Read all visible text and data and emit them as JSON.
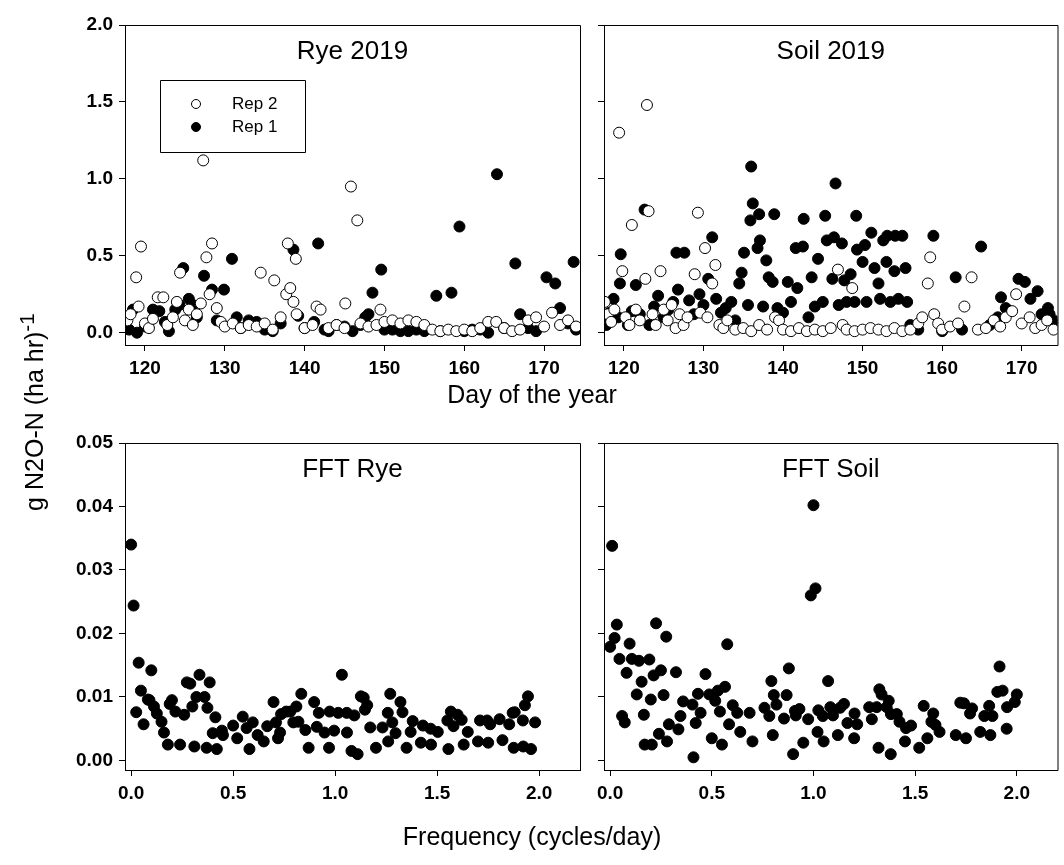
{
  "chart_data": [
    {
      "type": "scatter",
      "title": "Rye 2019",
      "xlabel": "Day of the year",
      "ylabel": "g N2O-N (ha hr)$^{-1}$",
      "marker": "circle",
      "legend": "top left",
      "xlim": [
        117.5,
        174.5
      ],
      "xticks": [
        120,
        130,
        140,
        150,
        160,
        170
      ],
      "ylim": [
        -0.08,
        2.0
      ],
      "yticks": [
        {
          "value": 0,
          "label": "0.0"
        },
        {
          "value": 0.5,
          "label": "0.5"
        },
        {
          "value": 1,
          "label": "1.0"
        },
        {
          "value": 1.5,
          "label": "1.5"
        },
        {
          "value": 2,
          "label": "2.0"
        }
      ],
      "series": [
        {
          "name": "Rep 2",
          "color": "#ffffff",
          "x": [
            117.8,
            118.2,
            118.9,
            119.2,
            119.5,
            120,
            120.5,
            121,
            121.6,
            122.3,
            122.8,
            123.5,
            124,
            124.4,
            125,
            125.5,
            126,
            126.5,
            127,
            127.3,
            127.7,
            128.1,
            128.4,
            129,
            129.5,
            130,
            131,
            132,
            133,
            134,
            134.5,
            135,
            136,
            136.2,
            137,
            137.7,
            137.9,
            138.2,
            138.6,
            138.9,
            139,
            140,
            141,
            141.5,
            142,
            143,
            144,
            145,
            145.1,
            145.8,
            146.6,
            147,
            148,
            149,
            149.5,
            150,
            151,
            152,
            153,
            154,
            155,
            156,
            157,
            158,
            159,
            160,
            161,
            162,
            163,
            164,
            165,
            166,
            167,
            168,
            169,
            170,
            171,
            172,
            173,
            174
          ],
          "values": [
            0.08,
            0.12,
            0.36,
            0.17,
            0.56,
            0.06,
            0.03,
            0.09,
            0.23,
            0.23,
            0.05,
            0.1,
            0.2,
            0.39,
            0.08,
            0.15,
            0.05,
            0.12,
            0.19,
            1.12,
            0.49,
            0.25,
            0.58,
            0.16,
            0.07,
            0.04,
            0.06,
            0.03,
            0.05,
            0.04,
            0.39,
            0.06,
            0.02,
            0.34,
            0.1,
            0.25,
            0.58,
            0.29,
            0.2,
            0.48,
            0.12,
            0.03,
            0.05,
            0.17,
            0.15,
            0.03,
            0.05,
            0.03,
            0.19,
            0.95,
            0.73,
            0.06,
            0.04,
            0.05,
            0.15,
            0.07,
            0.08,
            0.06,
            0.08,
            0.07,
            0.05,
            0.02,
            0.01,
            0.02,
            0.01,
            0.02,
            0.01,
            0.03,
            0.07,
            0.07,
            0.03,
            0.01,
            0.02,
            0.08,
            0.1,
            0.04,
            0.13,
            0.05,
            0.08,
            0.04
          ]
        },
        {
          "name": "Rep 1",
          "color": "#000000",
          "x": [
            118,
            118.5,
            119,
            120,
            121,
            121.8,
            122.5,
            123,
            123.8,
            124.3,
            124.8,
            125.5,
            126,
            126.5,
            127.4,
            128.4,
            129,
            129.9,
            130.9,
            131.5,
            132,
            133,
            134,
            135,
            136,
            137,
            138.6,
            139.2,
            140,
            141.2,
            141.7,
            142.5,
            143,
            144,
            145,
            146,
            147,
            147.6,
            148,
            148.5,
            149.6,
            150,
            151,
            152,
            153,
            154,
            155,
            156.5,
            157,
            158.4,
            159.4,
            160,
            161,
            162,
            163,
            164.1,
            165,
            166.4,
            167,
            168,
            169,
            170.3,
            171.4,
            172,
            173,
            173.7,
            174
          ],
          "values": [
            0.02,
            0.15,
            0,
            0.04,
            0.15,
            0.14,
            0.07,
            0.01,
            0.15,
            0.18,
            0.42,
            0.22,
            0.18,
            0.1,
            0.37,
            0.28,
            0.08,
            0.28,
            0.48,
            0.1,
            0.03,
            0.08,
            0.07,
            0.02,
            0.01,
            0.06,
            0.54,
            0.11,
            0.03,
            0.07,
            0.58,
            0.02,
            0.01,
            0.05,
            0.04,
            0.01,
            0.05,
            0.1,
            0.12,
            0.26,
            0.41,
            0.02,
            0.02,
            0.01,
            0.01,
            0.02,
            0.01,
            0.24,
            0.01,
            0.26,
            0.69,
            0.01,
            0.02,
            0.02,
            0,
            1.03,
            0.03,
            0.45,
            0.12,
            0.03,
            0.01,
            0.36,
            0.32,
            0.16,
            0.06,
            0.46,
            0.02
          ]
        }
      ]
    },
    {
      "type": "scatter",
      "title": "Soil 2019",
      "marker": "circle",
      "tick_labels": "x",
      "xlim": [
        117.5,
        174.5
      ],
      "xticks": [
        120,
        130,
        140,
        150,
        160,
        170
      ],
      "ylim": [
        -0.08,
        2.0
      ],
      "yticks": [
        {
          "value": 0,
          "label": null
        },
        {
          "value": 0.5,
          "label": null
        },
        {
          "value": 1,
          "label": null
        },
        {
          "value": 1.5,
          "label": null
        },
        {
          "value": 2,
          "label": null
        }
      ],
      "series": [
        {
          "color": "#ffffff",
          "x": [
            117.6,
            118,
            118.4,
            118.8,
            119.4,
            119.8,
            120.2,
            120.7,
            121,
            121.5,
            122,
            122.7,
            122.9,
            123.1,
            123.6,
            124,
            124.6,
            125,
            125.5,
            126,
            126.5,
            127,
            127.5,
            128,
            128.9,
            129.3,
            129.6,
            130.2,
            130.5,
            131.1,
            131.5,
            132,
            132.5,
            133,
            134,
            135,
            136,
            137,
            138,
            139,
            139.5,
            140,
            141,
            142,
            143,
            144,
            145,
            146,
            146.9,
            147.5,
            148,
            148.7,
            149,
            150,
            151,
            152,
            153,
            154,
            155,
            156,
            157,
            157.5,
            158.2,
            158.5,
            159,
            159.5,
            160,
            161,
            162,
            162.8,
            163.7,
            164.5,
            165.5,
            166.5,
            167.3,
            168,
            168.8,
            169.3,
            170,
            171,
            171.7,
            172.5,
            173.2,
            174
          ],
          "values": [
            0.2,
            0.12,
            0.07,
            0.15,
            1.3,
            0.4,
            0.1,
            0.05,
            0.7,
            0.15,
            0.08,
            0.35,
            1.48,
            0.79,
            0.12,
            0.05,
            0.4,
            0.15,
            0.08,
            0.18,
            0.03,
            0.12,
            0.05,
            0.1,
            0.38,
            0.78,
            0.13,
            0.55,
            0.1,
            0.32,
            0.44,
            0.05,
            0.03,
            0.08,
            0.02,
            0.03,
            0.01,
            0.05,
            0.02,
            0.1,
            0.08,
            0.02,
            0.01,
            0.03,
            0.01,
            0.02,
            0.01,
            0.03,
            0.41,
            0.05,
            0.02,
            0.29,
            0.01,
            0.02,
            0.03,
            0.02,
            0.01,
            0.03,
            0.01,
            0.02,
            0.06,
            0.1,
            0.32,
            0.49,
            0.12,
            0.06,
            0.02,
            0.04,
            0.06,
            0.17,
            0.36,
            0.02,
            0.03,
            0.08,
            0.04,
            0.1,
            0.14,
            0.25,
            0.06,
            0.1,
            0.03,
            0.05,
            0.08,
            0.02
          ]
        },
        {
          "color": "#000000",
          "x": [
            117.8,
            118.2,
            118.7,
            119.3,
            119.5,
            119.6,
            120.5,
            121,
            121.5,
            122,
            122.6,
            123.2,
            123.8,
            124.3,
            125,
            125.6,
            126.2,
            126.6,
            126.8,
            127.6,
            128.2,
            128.8,
            129.5,
            130,
            130.6,
            131.1,
            131.6,
            132.2,
            132.8,
            133.5,
            134,
            134.5,
            134.8,
            135.1,
            135.6,
            135.9,
            136,
            136.2,
            136.8,
            137,
            137.1,
            137.5,
            137.9,
            138.2,
            138.7,
            138.9,
            139.3,
            140,
            140.6,
            141,
            141.6,
            141.8,
            142.5,
            142.6,
            143.2,
            143.6,
            144,
            144.4,
            145,
            145.3,
            145.5,
            146.2,
            146.4,
            146.6,
            147,
            147.4,
            147.7,
            148,
            148.5,
            149,
            149.2,
            149.3,
            150,
            150.3,
            150.5,
            151.1,
            151.5,
            152,
            152.2,
            152.6,
            153,
            153.1,
            153.5,
            154,
            154.1,
            154.5,
            155,
            155.4,
            155.6,
            156,
            157,
            158.9,
            160,
            161.7,
            162.5,
            164.9,
            166,
            167,
            167.4,
            168,
            169.6,
            170.4,
            171.1,
            172,
            172.5,
            173.3,
            173.5,
            174,
            174.4
          ],
          "values": [
            0.05,
            0.13,
            0.22,
            0.1,
            0.32,
            0.51,
            0.05,
            0.14,
            0.31,
            0.12,
            0.8,
            0.05,
            0.17,
            0.24,
            0.1,
            0.15,
            0.2,
            0.52,
            0.28,
            0.52,
            0.21,
            0.12,
            0.25,
            0.18,
            0.35,
            0.62,
            0.22,
            0.13,
            0.16,
            0.2,
            0.08,
            0.32,
            0.39,
            0.52,
            0.18,
            0.73,
            1.08,
            0.84,
            0.55,
            0.77,
            0.6,
            0.17,
            0.47,
            0.36,
            0.33,
            0.77,
            0.16,
            0.13,
            0.33,
            0.2,
            0.55,
            0.29,
            0.56,
            0.74,
            0.1,
            0.36,
            0.17,
            0.48,
            0.2,
            0.76,
            0.6,
            0.35,
            0.62,
            0.97,
            0.18,
            0.58,
            0.34,
            0.2,
            0.38,
            0.2,
            0.76,
            0.54,
            0.46,
            0.57,
            0.2,
            0.65,
            0.42,
            0.32,
            0.22,
            0.6,
            0.46,
            0.63,
            0.2,
            0.4,
            0.63,
            0.22,
            0.63,
            0.42,
            0.2,
            0.05,
            0.02,
            0.63,
            0.01,
            0.36,
            0.02,
            0.56,
            0.05,
            0.1,
            0.23,
            0.16,
            0.35,
            0.33,
            0.22,
            0.27,
            0.12,
            0.16,
            0.12,
            0.08,
            0.05
          ]
        }
      ]
    },
    {
      "type": "scatter",
      "title": "FFT Rye",
      "xlabel": "Frequency (cycles/day)",
      "marker": "circle",
      "xlim": [
        -0.03,
        2.2
      ],
      "xticks": [
        {
          "value": 0,
          "label": "0.0"
        },
        {
          "value": 0.5,
          "label": "0.5"
        },
        {
          "value": 1,
          "label": "1.0"
        },
        {
          "value": 1.5,
          "label": "1.5"
        },
        {
          "value": 2,
          "label": "2.0"
        }
      ],
      "ylim": [
        -0.0015,
        0.05
      ],
      "yticks": [
        {
          "value": 0,
          "label": "0.00"
        },
        {
          "value": 0.01,
          "label": "0.01"
        },
        {
          "value": 0.02,
          "label": "0.02"
        },
        {
          "value": 0.03,
          "label": "0.03"
        },
        {
          "value": 0.04,
          "label": "0.04"
        },
        {
          "value": 0.05,
          "label": "0.05"
        }
      ],
      "series": [
        {
          "color": "#000000",
          "x": [
            0,
            0.012,
            0.025,
            0.037,
            0.048,
            0.061,
            0.082,
            0.09,
            0.099,
            0.112,
            0.126,
            0.149,
            0.161,
            0.18,
            0.189,
            0.2,
            0.217,
            0.24,
            0.26,
            0.273,
            0.29,
            0.3,
            0.31,
            0.32,
            0.335,
            0.36,
            0.37,
            0.374,
            0.385,
            0.4,
            0.413,
            0.42,
            0.445,
            0.45,
            0.5,
            0.52,
            0.547,
            0.566,
            0.58,
            0.596,
            0.62,
            0.65,
            0.667,
            0.698,
            0.71,
            0.72,
            0.73,
            0.735,
            0.76,
            0.78,
            0.795,
            0.81,
            0.82,
            0.834,
            0.854,
            0.87,
            0.897,
            0.91,
            0.92,
            0.948,
            0.97,
            0.973,
            0.995,
            1.015,
            1.033,
            1.057,
            1.058,
            1.08,
            1.094,
            1.11,
            1.126,
            1.14,
            1.146,
            1.157,
            1.172,
            1.2,
            1.232,
            1.258,
            1.26,
            1.27,
            1.28,
            1.296,
            1.32,
            1.33,
            1.35,
            1.37,
            1.38,
            1.42,
            1.43,
            1.468,
            1.47,
            1.503,
            1.55,
            1.555,
            1.567,
            1.58,
            1.6,
            1.62,
            1.63,
            1.65,
            1.7,
            1.71,
            1.745,
            1.75,
            1.76,
            1.806,
            1.82,
            1.853,
            1.87,
            1.875,
            1.88,
            1.92,
            1.922,
            1.93,
            1.945,
            1.96,
            1.98
          ],
          "values": [
            0.034,
            0.0244,
            0.0076,
            0.0154,
            0.011,
            0.0057,
            0.0096,
            0.0095,
            0.0142,
            0.0085,
            0.0074,
            0.0061,
            0.0044,
            0.0025,
            0.0089,
            0.0095,
            0.0077,
            0.0025,
            0.0072,
            0.0123,
            0.0121,
            0.0085,
            0.0022,
            0.01,
            0.0135,
            0.01,
            0.002,
            0.0083,
            0.0123,
            0.0043,
            0.0068,
            0.0018,
            0.0047,
            0.004,
            0.0055,
            0.0035,
            0.0069,
            0.0051,
            0.0018,
            0.006,
            0.004,
            0.003,
            0.0054,
            0.0092,
            0.006,
            0.0035,
            0.0044,
            0.0073,
            0.0077,
            0.0077,
            0.006,
            0.0085,
            0.0061,
            0.0105,
            0.0048,
            0.002,
            0.0092,
            0.0053,
            0.0075,
            0.0044,
            0.002,
            0.0077,
            0.0047,
            0.0075,
            0.0135,
            0.0075,
            0.0044,
            0.0015,
            0.0071,
            0.001,
            0.0101,
            0.0099,
            0.008,
            0.0087,
            0.0052,
            0.002,
            0.0052,
            0.0075,
            0.003,
            0.0105,
            0.006,
            0.0043,
            0.0092,
            0.0076,
            0.002,
            0.0045,
            0.0062,
            0.0028,
            0.0055,
            0.005,
            0.0025,
            0.0045,
            0.0063,
            0.0018,
            0.0077,
            0.0054,
            0.0072,
            0.0064,
            0.0025,
            0.0045,
            0.003,
            0.0063,
            0.0063,
            0.0028,
            0.0057,
            0.0065,
            0.0032,
            0.0057,
            0.0075,
            0.002,
            0.0076,
            0.0063,
            0.0022,
            0.0087,
            0.0101,
            0.0018,
            0.006
          ]
        }
      ]
    },
    {
      "type": "scatter",
      "title": "FFT Soil",
      "marker": "circle",
      "tick_labels": "x",
      "xlim": [
        -0.03,
        2.2
      ],
      "xticks": [
        {
          "value": 0,
          "label": "0.0"
        },
        {
          "value": 0.5,
          "label": "0.5"
        },
        {
          "value": 1,
          "label": "1.0"
        },
        {
          "value": 1.5,
          "label": "1.5"
        },
        {
          "value": 2,
          "label": "2.0"
        }
      ],
      "ylim": [
        -0.0015,
        0.05
      ],
      "yticks": [
        {
          "value": 0,
          "label": null
        },
        {
          "value": 0.01,
          "label": null
        },
        {
          "value": 0.02,
          "label": null
        },
        {
          "value": 0.03,
          "label": null
        },
        {
          "value": 0.04,
          "label": null
        },
        {
          "value": 0.05,
          "label": null
        }
      ],
      "series": [
        {
          "color": "#000000",
          "x": [
            0,
            0.01,
            0.022,
            0.033,
            0.046,
            0.059,
            0.072,
            0.081,
            0.096,
            0.107,
            0.131,
            0.142,
            0.155,
            0.166,
            0.17,
            0.193,
            0.2,
            0.205,
            0.214,
            0.226,
            0.24,
            0.25,
            0.263,
            0.276,
            0.28,
            0.289,
            0.324,
            0.336,
            0.346,
            0.359,
            0.405,
            0.41,
            0.421,
            0.432,
            0.445,
            0.469,
            0.488,
            0.5,
            0.517,
            0.53,
            0.54,
            0.55,
            0.565,
            0.576,
            0.585,
            0.603,
            0.625,
            0.64,
            0.686,
            0.7,
            0.759,
            0.783,
            0.793,
            0.8,
            0.805,
            0.818,
            0.855,
            0.868,
            0.879,
            0.9,
            0.909,
            0.913,
            0.931,
            0.95,
            0.974,
            0.987,
            1,
            1.01,
            1.02,
            1.024,
            1.046,
            1.05,
            1.072,
            1.083,
            1.096,
            1.12,
            1.131,
            1.15,
            1.167,
            1.2,
            1.202,
            1.215,
            1.274,
            1.287,
            1.311,
            1.32,
            1.324,
            1.335,
            1.36,
            1.37,
            1.38,
            1.381,
            1.41,
            1.423,
            1.45,
            1.455,
            1.48,
            1.52,
            1.542,
            1.56,
            1.58,
            1.589,
            1.6,
            1.62,
            1.7,
            1.722,
            1.74,
            1.75,
            1.77,
            1.78,
            1.82,
            1.84,
            1.864,
            1.87,
            1.88,
            1.904,
            1.915,
            1.93,
            1.95,
            1.952,
            1.99,
            2
          ],
          "values": [
            0.0179,
            0.0338,
            0.0193,
            0.0214,
            0.016,
            0.007,
            0.006,
            0.0138,
            0.0184,
            0.016,
            0.0104,
            0.0157,
            0.0124,
            0.0072,
            0.0025,
            0.0159,
            0.0096,
            0.0025,
            0.0134,
            0.0216,
            0.0042,
            0.0142,
            0.0103,
            0.0195,
            0.003,
            0.0057,
            0.0139,
            0.0049,
            0.007,
            0.0093,
            0.0088,
            0.0005,
            0.0059,
            0.0105,
            0.0075,
            0.0136,
            0.0104,
            0.0035,
            0.0094,
            0.011,
            0.0077,
            0.0025,
            0.0116,
            0.0183,
            0.0057,
            0.0087,
            0.0075,
            0.0045,
            0.0075,
            0.003,
            0.0083,
            0.007,
            0.0125,
            0.004,
            0.0103,
            0.0088,
            0.0066,
            0.0103,
            0.0145,
            0.001,
            0.0078,
            0.0071,
            0.0081,
            0.0028,
            0.0065,
            0.026,
            0.0402,
            0.0271,
            0.0045,
            0.0079,
            0.007,
            0.003,
            0.0125,
            0.0084,
            0.0071,
            0.004,
            0.0083,
            0.0089,
            0.0059,
            0.0035,
            0.0074,
            0.0057,
            0.0084,
            0.0065,
            0.0084,
            0.002,
            0.0112,
            0.0104,
            0.0084,
            0.0094,
            0.001,
            0.0073,
            0.0073,
            0.0061,
            0.003,
            0.0051,
            0.0055,
            0.002,
            0.0086,
            0.0035,
            0.0061,
            0.0074,
            0.0056,
            0.0045,
            0.004,
            0.0091,
            0.009,
            0.0035,
            0.0074,
            0.0082,
            0.0045,
            0.007,
            0.0086,
            0.004,
            0.007,
            0.0108,
            0.0148,
            0.011,
            0.005,
            0.0084,
            0.0092,
            0.0104
          ]
        }
      ]
    }
  ]
}
